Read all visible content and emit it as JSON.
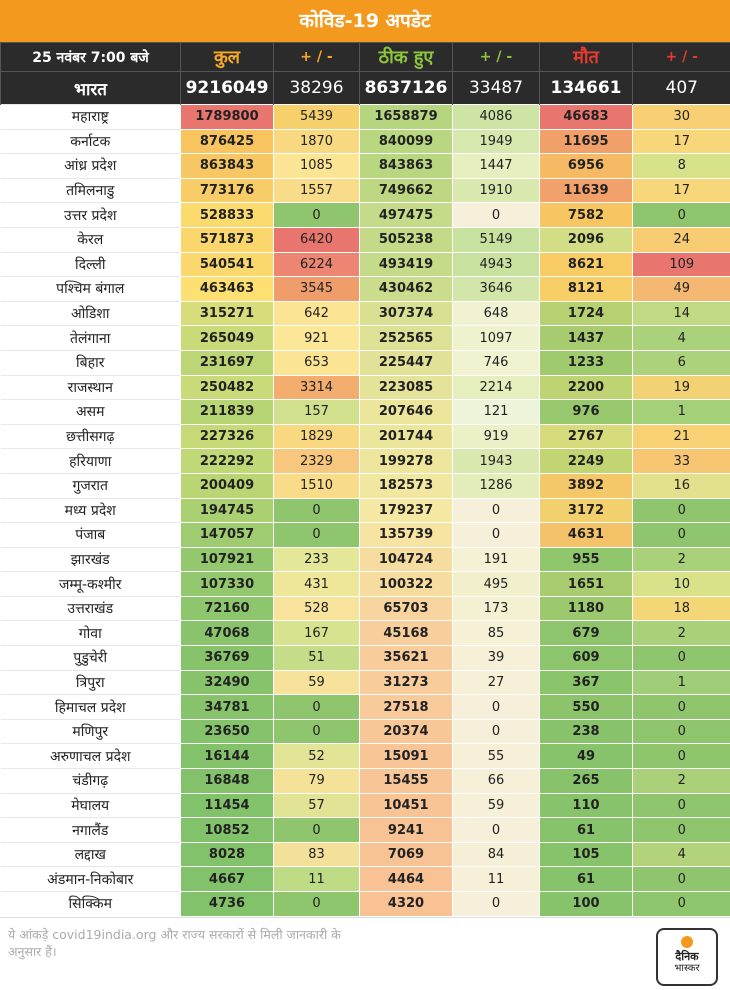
{
  "title": "कोविड-19 अपडेट",
  "header": {
    "date": "25 नवंबर  7:00 बजे",
    "kul": "कुल",
    "pm": "+ / -",
    "thik": "ठीक हुए",
    "maut": "मौत"
  },
  "bharat": [
    "भारत",
    "9216049",
    "38296",
    "8637126",
    "33487",
    "134661",
    "407"
  ],
  "rows": [
    [
      "महाराष्ट्र",
      "1789800",
      "5439",
      "1658879",
      "4086",
      "46683",
      "30"
    ],
    [
      "कर्नाटक",
      "876425",
      "1870",
      "840099",
      "1949",
      "11695",
      "17"
    ],
    [
      "आंध्र प्रदेश",
      "863843",
      "1085",
      "843863",
      "1447",
      "6956",
      "8"
    ],
    [
      "तमिलनाडु",
      "773176",
      "1557",
      "749662",
      "1910",
      "11639",
      "17"
    ],
    [
      "उत्तर प्रदेश",
      "528833",
      "0",
      "497475",
      "0",
      "7582",
      "0"
    ],
    [
      "केरल",
      "571873",
      "6420",
      "505238",
      "5149",
      "2096",
      "24"
    ],
    [
      "दिल्ली",
      "540541",
      "6224",
      "493419",
      "4943",
      "8621",
      "109"
    ],
    [
      "पश्चिम बंगाल",
      "463463",
      "3545",
      "430462",
      "3646",
      "8121",
      "49"
    ],
    [
      "ओडिशा",
      "315271",
      "642",
      "307374",
      "648",
      "1724",
      "14"
    ],
    [
      "तेलंगाना",
      "265049",
      "921",
      "252565",
      "1097",
      "1437",
      "4"
    ],
    [
      "बिहार",
      "231697",
      "653",
      "225447",
      "746",
      "1233",
      "6"
    ],
    [
      "राजस्थान",
      "250482",
      "3314",
      "223085",
      "2214",
      "2200",
      "19"
    ],
    [
      "असम",
      "211839",
      "157",
      "207646",
      "121",
      "976",
      "1"
    ],
    [
      "छत्तीसगढ़",
      "227326",
      "1829",
      "201744",
      "919",
      "2767",
      "21"
    ],
    [
      "हरियाणा",
      "222292",
      "2329",
      "199278",
      "1943",
      "2249",
      "33"
    ],
    [
      "गुजरात",
      "200409",
      "1510",
      "182573",
      "1286",
      "3892",
      "16"
    ],
    [
      "मध्य प्रदेश",
      "194745",
      "0",
      "179237",
      "0",
      "3172",
      "0"
    ],
    [
      "पंजाब",
      "147057",
      "0",
      "135739",
      "0",
      "4631",
      "0"
    ],
    [
      "झारखंड",
      "107921",
      "233",
      "104724",
      "191",
      "955",
      "2"
    ],
    [
      "जम्मू-कश्मीर",
      "107330",
      "431",
      "100322",
      "495",
      "1651",
      "10"
    ],
    [
      "उत्तराखंड",
      "72160",
      "528",
      "65703",
      "173",
      "1180",
      "18"
    ],
    [
      "गोवा",
      "47068",
      "167",
      "45168",
      "85",
      "679",
      "2"
    ],
    [
      "पुडुचेरी",
      "36769",
      "51",
      "35621",
      "39",
      "609",
      "0"
    ],
    [
      "त्रिपुरा",
      "32490",
      "59",
      "31273",
      "27",
      "367",
      "1"
    ],
    [
      "हिमाचल प्रदेश",
      "34781",
      "0",
      "27518",
      "0",
      "550",
      "0"
    ],
    [
      "मणिपुर",
      "23650",
      "0",
      "20374",
      "0",
      "238",
      "0"
    ],
    [
      "अरुणाचल प्रदेश",
      "16144",
      "52",
      "15091",
      "55",
      "49",
      "0"
    ],
    [
      "चंडीगढ़",
      "16848",
      "79",
      "15455",
      "66",
      "265",
      "2"
    ],
    [
      "मेघालय",
      "11454",
      "57",
      "10451",
      "59",
      "110",
      "0"
    ],
    [
      "नगालैंड",
      "10852",
      "0",
      "9241",
      "0",
      "61",
      "0"
    ],
    [
      "लद्दाख",
      "8028",
      "83",
      "7069",
      "84",
      "105",
      "4"
    ],
    [
      "अंडमान-निकोबार",
      "4667",
      "11",
      "4464",
      "11",
      "61",
      "0"
    ],
    [
      "सिक्किम",
      "4736",
      "0",
      "4320",
      "0",
      "100",
      "0"
    ]
  ],
  "colors": [
    [
      "#e8766f",
      "#f6d06b",
      "#b5d57f",
      "#cde4a4",
      "#e8766f",
      "#f8d073"
    ],
    [
      "#f7c460",
      "#f8d981",
      "#b9d681",
      "#d6e8ad",
      "#f2a06a",
      "#f8d77a"
    ],
    [
      "#f7c763",
      "#fbe595",
      "#b9d681",
      "#e7eebf",
      "#f6b964",
      "#d8e28b"
    ],
    [
      "#f8cc66",
      "#f8dc89",
      "#bdd783",
      "#d8e8af",
      "#f2a16a",
      "#f8d77a"
    ],
    [
      "#fbdb6e",
      "#8fc66d",
      "#c6db8a",
      "#f6f0da",
      "#f7c662",
      "#8fc66d"
    ],
    [
      "#fad66c",
      "#e8766f",
      "#c4da88",
      "#c7e19f",
      "#d2dd86",
      "#f7cc73"
    ],
    [
      "#fad86d",
      "#ec8572",
      "#c6db8a",
      "#c8e19f",
      "#f8cb65",
      "#e8766f"
    ],
    [
      "#fde071",
      "#f09d6c",
      "#cbdd8c",
      "#d3e6a9",
      "#f8ce66",
      "#f4b872"
    ],
    [
      "#d8dd7b",
      "#fbe493",
      "#d9e092",
      "#f2f2d3",
      "#b6d171",
      "#c0d983"
    ],
    [
      "#c9da78",
      "#fce697",
      "#dde195",
      "#f0f1ce",
      "#a6cc6f",
      "#aad27a"
    ],
    [
      "#bcd675",
      "#fbe493",
      "#e1e297",
      "#f1f2d0",
      "#a0ca6e",
      "#acd37b"
    ],
    [
      "#c9da78",
      "#f3ad6f",
      "#e5e399",
      "#e5eebd",
      "#bed472",
      "#f3d274"
    ],
    [
      "#b7d574",
      "#d0e08c",
      "#ece59c",
      "#eef4d9",
      "#98c86d",
      "#a5d07a"
    ],
    [
      "#c5d977",
      "#f8d880",
      "#ece59c",
      "#ecf0c6",
      "#d6dc7c",
      "#f7d174"
    ],
    [
      "#c1d876",
      "#f6c77d",
      "#eee69d",
      "#d8e8af",
      "#c2d573",
      "#f7c673"
    ],
    [
      "#b9d574",
      "#f9dc89",
      "#f2e7a0",
      "#e2edb9",
      "#f4c769",
      "#e2e08c"
    ],
    [
      "#aad072",
      "#8fc66d",
      "#f5e8a3",
      "#f6f0da",
      "#f2d06e",
      "#8fc66d"
    ],
    [
      "#9fcc70",
      "#8fc66d",
      "#f7e4a2",
      "#f6f0da",
      "#f4c369",
      "#8fc66d"
    ],
    [
      "#93c86e",
      "#e4e698",
      "#f7dca0",
      "#f4f1d4",
      "#90c66c",
      "#a8d17a"
    ],
    [
      "#93c86e",
      "#eee79a",
      "#f7dca0",
      "#f2f0cc",
      "#a8cc6f",
      "#d9e18b"
    ],
    [
      "#8dc66d",
      "#f7e39c",
      "#f8d59e",
      "#f4f1d3",
      "#9cc96e",
      "#f3d776"
    ],
    [
      "#89c46c",
      "#d7e38f",
      "#f8cf9c",
      "#f5f0d6",
      "#8ec56c",
      "#aad17a"
    ],
    [
      "#87c36b",
      "#c5dd88",
      "#f8cd9b",
      "#f5f0d7",
      "#8dc56c",
      "#8fc66d"
    ],
    [
      "#86c36b",
      "#f6e29a",
      "#f8cc9b",
      "#f6f0d9",
      "#8ac46b",
      "#a0cd78"
    ],
    [
      "#86c36b",
      "#8fc66d",
      "#f8c999",
      "#f6f0da",
      "#8bc46b",
      "#8fc66d"
    ],
    [
      "#84c26b",
      "#8fc66d",
      "#f8c797",
      "#f6f0da",
      "#88c36b",
      "#8fc66d"
    ],
    [
      "#83c26b",
      "#e3e596",
      "#f8c596",
      "#f6f0d8",
      "#87c36b",
      "#8fc66d"
    ],
    [
      "#83c26b",
      "#f5e299",
      "#f8c596",
      "#f6f0d8",
      "#88c36b",
      "#aad17a"
    ],
    [
      "#82c26b",
      "#e0e494",
      "#f8c495",
      "#f6f0d8",
      "#87c36b",
      "#8fc66d"
    ],
    [
      "#82c26b",
      "#8fc66d",
      "#f8c394",
      "#f6f0da",
      "#87c36b",
      "#8fc66d"
    ],
    [
      "#82c26b",
      "#f3e199",
      "#f8c394",
      "#f6efd8",
      "#87c36b",
      "#b3d37b"
    ],
    [
      "#82c26b",
      "#bedb86",
      "#f8c294",
      "#f6f0d9",
      "#87c36b",
      "#8fc66d"
    ],
    [
      "#82c26b",
      "#8fc66d",
      "#f8c294",
      "#f6f0da",
      "#87c36b",
      "#8fc66d"
    ]
  ],
  "footer": {
    "note": "ये आंकड़े covid19india.org और राज्य सरकारों से मिली जानकारी के अनुसार हैं।",
    "logo_line1": "दैनिक",
    "logo_line2": "भास्कर"
  }
}
